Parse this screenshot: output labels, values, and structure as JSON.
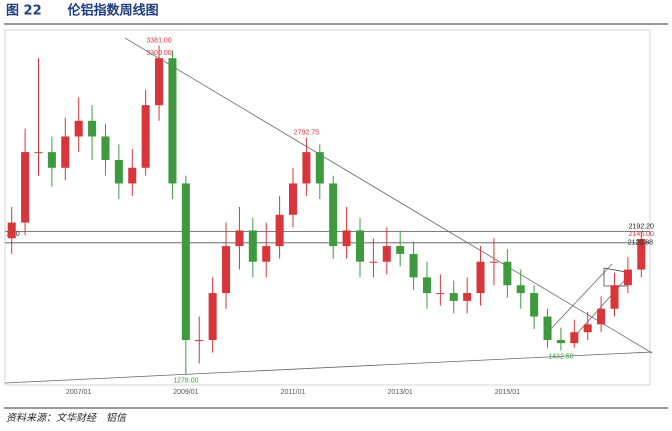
{
  "chart_data": {
    "type": "candlestick",
    "title": "图 22　　伦铝指数周线图",
    "source": "资料来源：文华财经　铝信",
    "categories": [
      null,
      null,
      null,
      null,
      null,
      "2007/01",
      null,
      null,
      null,
      null,
      null,
      null,
      null,
      "2009/01",
      null,
      null,
      null,
      null,
      null,
      null,
      null,
      "2011/01",
      null,
      null,
      null,
      null,
      null,
      null,
      null,
      "2013/01",
      null,
      null,
      null,
      null,
      null,
      null,
      null,
      "2015/01",
      null,
      null,
      null,
      null,
      null,
      null,
      null,
      null,
      null,
      null
    ],
    "open": [
      2150,
      2250,
      2700,
      2700,
      2600,
      2800,
      2900,
      2800,
      2650,
      2500,
      2600,
      3000,
      3300,
      2500,
      1500,
      1500,
      1800,
      2100,
      2200,
      2000,
      2100,
      2300,
      2500,
      2700,
      2500,
      2100,
      2200,
      2000,
      2000,
      2100,
      2050,
      1900,
      1800,
      1800,
      1750,
      1800,
      2000,
      2000,
      1850,
      1800,
      1650,
      1500,
      1480,
      1550,
      1600,
      1700,
      1850,
      1950
    ],
    "high": [
      2350,
      2850,
      3300,
      2800,
      2920,
      3050,
      3000,
      2880,
      2750,
      2720,
      3100,
      3381,
      3350,
      2550,
      1650,
      1900,
      2250,
      2350,
      2280,
      2250,
      2420,
      2600,
      2792.75,
      2750,
      2550,
      2350,
      2280,
      2150,
      2220,
      2200,
      2130,
      2000,
      1920,
      1880,
      1900,
      2100,
      2150,
      2080,
      1950,
      1850,
      1700,
      1580,
      1630,
      1680,
      1780,
      1930,
      2030,
      2192.2
    ],
    "low": [
      2050,
      2170,
      2550,
      2480,
      2520,
      2700,
      2650,
      2550,
      2400,
      2420,
      2550,
      2900,
      2400,
      1278,
      1350,
      1420,
      1700,
      1950,
      1900,
      1900,
      2020,
      2220,
      2420,
      2400,
      2020,
      2020,
      1900,
      1900,
      1920,
      1970,
      1820,
      1700,
      1720,
      1670,
      1670,
      1720,
      1850,
      1770,
      1700,
      1570,
      1450,
      1432.5,
      1450,
      1500,
      1550,
      1650,
      1800,
      1900
    ],
    "close": [
      2250,
      2700,
      2700,
      2600,
      2800,
      2900,
      2800,
      2650,
      2500,
      2600,
      3000,
      3300,
      2500,
      1500,
      1500,
      1800,
      2100,
      2200,
      2000,
      2100,
      2300,
      2500,
      2700,
      2500,
      2100,
      2200,
      2000,
      2000,
      2100,
      2050,
      1900,
      1800,
      1800,
      1750,
      1800,
      2000,
      2000,
      1850,
      1800,
      1650,
      1500,
      1480,
      1550,
      1600,
      1700,
      1850,
      1950,
      2145
    ],
    "up_color": "#d8363a",
    "down_color": "#3f9a3f",
    "ylim": [
      1200,
      3480
    ],
    "levels": [
      2192.2,
      2120.88
    ],
    "annotations": [
      {
        "label": "3300.00",
        "value": 3300,
        "color": "#d8363a"
      },
      {
        "label": "3381.00",
        "value": 3381,
        "color": "#d8363a"
      },
      {
        "label": "2792.75",
        "value": 2792.75,
        "color": "#d8363a"
      },
      {
        "label": "1278.00",
        "value": 1278,
        "color": "#3f9a3f"
      },
      {
        "label": "1432.50",
        "value": 1432.5,
        "color": "#3f9a3f"
      },
      {
        "label": "2192.20",
        "value": 2192.2,
        "color": "#222222"
      },
      {
        "label": "2145.00",
        "value": 2145,
        "color": "#d8363a"
      },
      {
        "label": "2120.88",
        "value": 2120.88,
        "color": "#222222"
      }
    ],
    "left_cut_label": "1.50"
  }
}
